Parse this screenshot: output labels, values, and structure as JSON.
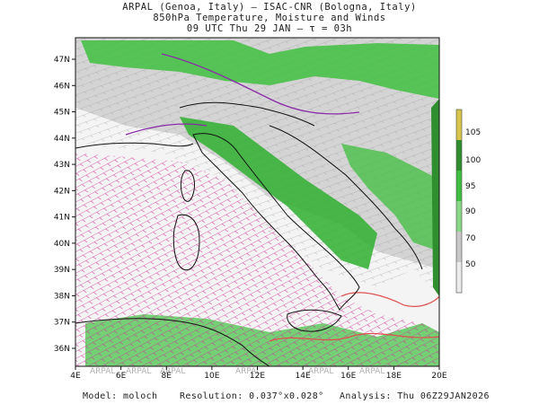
{
  "header": {
    "line1": "ARPAL (Genoa, Italy)  —  ISAC-CNR (Bologna, Italy)",
    "line2": "850hPa Temperature, Moisture and Winds",
    "line3": "09 UTC Thu 29 JAN  —  τ = 03h"
  },
  "axes": {
    "lon_labels": [
      "4E",
      "6E",
      "8E",
      "10E",
      "12E",
      "14E",
      "16E",
      "18E",
      "20E"
    ],
    "lat_labels": [
      "36N",
      "37N",
      "38N",
      "39N",
      "40N",
      "41N",
      "42N",
      "43N",
      "44N",
      "45N",
      "46N",
      "47N"
    ]
  },
  "colorbar": {
    "labels": [
      "105",
      "100",
      "95",
      "90",
      "70",
      "50"
    ],
    "colors": [
      "#d8c64a",
      "#2f8f2f",
      "#3fbf3f",
      "#88d888",
      "#c8c8c8",
      "#ececec"
    ]
  },
  "watermark": [
    "ARPAL",
    "ARPAL",
    "ARPAL",
    "ARPAL",
    "ARPAL",
    "ARPAL"
  ],
  "footer": {
    "model_label": "Model:",
    "model_value": "moloch",
    "resolution_label": "Resolution:",
    "resolution_value": "0.037°x0.028°",
    "analysis_label": "Analysis:",
    "analysis_value": "Thu 06Z29JAN2026"
  }
}
